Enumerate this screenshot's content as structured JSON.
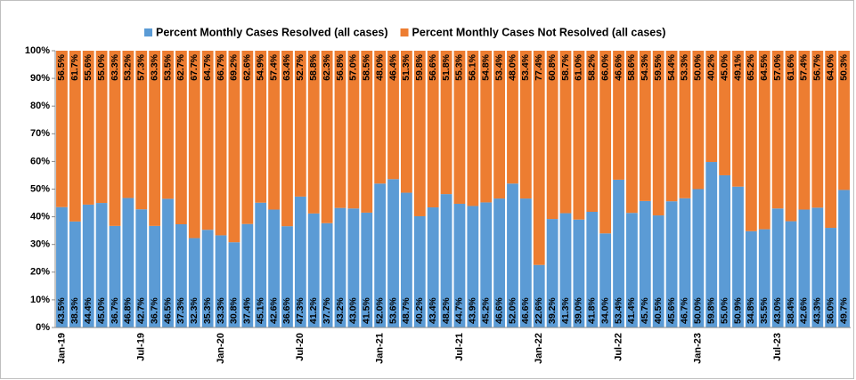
{
  "chart_data": {
    "type": "stacked_bar",
    "categories": [
      "Jan-19",
      null,
      null,
      null,
      null,
      null,
      "Jul-19",
      null,
      null,
      null,
      null,
      null,
      "Jan-20",
      null,
      null,
      null,
      null,
      null,
      "Jul-20",
      null,
      null,
      null,
      null,
      null,
      "Jan-21",
      null,
      null,
      null,
      null,
      null,
      "Jul-21",
      null,
      null,
      null,
      null,
      null,
      "Jan-22",
      null,
      null,
      null,
      null,
      null,
      "Jul-22",
      null,
      null,
      null,
      null,
      null,
      "Jan-23",
      null,
      null,
      null,
      null,
      null,
      "Jul-23",
      null,
      null,
      null,
      null,
      null
    ],
    "series": [
      {
        "name": "Percent Monthly Cases Resolved (all cases)",
        "color": "#5b9bd5",
        "values": [
          43.5,
          38.3,
          44.4,
          45.0,
          36.7,
          46.8,
          42.7,
          36.7,
          46.5,
          37.3,
          32.3,
          35.3,
          33.3,
          30.8,
          37.4,
          45.1,
          42.6,
          36.6,
          47.3,
          41.2,
          37.7,
          43.2,
          43.0,
          41.5,
          52.0,
          53.6,
          48.7,
          40.2,
          43.4,
          48.2,
          44.7,
          43.9,
          45.2,
          46.6,
          52.0,
          46.6,
          22.6,
          39.2,
          41.3,
          39.0,
          41.8,
          34.0,
          53.4,
          41.4,
          45.7,
          40.5,
          45.6,
          46.7,
          50.0,
          59.8,
          55.0,
          50.9,
          34.8,
          35.5,
          43.0,
          38.4,
          42.6,
          43.3,
          36.0,
          49.7
        ],
        "value_labels": [
          "43.5%",
          "38.3%",
          "44.4%",
          "45.0%",
          "36.7%",
          "46.8%",
          "42.7%",
          "36.7%",
          "46.5%",
          "37.3%",
          "32.3%",
          "35.3%",
          "33.3%",
          "30.8%",
          "37.4%",
          "45.1%",
          "42.6%",
          "36.6%",
          "47.3%",
          "41.2%",
          "37.7%",
          "43.2%",
          "43.0%",
          "41.5%",
          "52.0%",
          "53.6%",
          "48.7%",
          "40.2%",
          "43.4%",
          "48.2%",
          "44.7%",
          "43.9%",
          "45.2%",
          "46.6%",
          "52.0%",
          "46.6%",
          "22.6%",
          "39.2%",
          "41.3%",
          "39.0%",
          "41.8%",
          "34.0%",
          "53.4%",
          "41.4%",
          "45.7%",
          "40.5%",
          "45.6%",
          "46.7%",
          "50.0%",
          "59.8%",
          "55.0%",
          "50.9%",
          "34.8%",
          "35.5%",
          "43.0%",
          "38.4%",
          "42.6%",
          "43.3%",
          "36.0%",
          "49.7%"
        ]
      },
      {
        "name": "Percent Monthly Cases Not Resolved (all cases)",
        "color": "#ed7d31",
        "values": [
          56.5,
          61.7,
          55.6,
          55.0,
          63.3,
          53.2,
          57.3,
          63.3,
          53.5,
          62.7,
          67.7,
          64.7,
          66.7,
          69.2,
          62.6,
          54.9,
          57.4,
          63.4,
          52.7,
          58.8,
          62.3,
          56.8,
          57.0,
          58.5,
          48.0,
          46.4,
          51.3,
          59.8,
          56.6,
          51.8,
          55.3,
          56.1,
          54.8,
          53.4,
          48.0,
          53.4,
          77.4,
          60.8,
          58.7,
          61.0,
          58.2,
          66.0,
          46.6,
          58.6,
          54.3,
          59.5,
          54.4,
          53.3,
          50.0,
          40.2,
          45.0,
          49.1,
          65.2,
          64.5,
          57.0,
          61.6,
          57.4,
          56.7,
          64.0,
          50.3
        ],
        "value_labels": [
          "56.5%",
          "61.7%",
          "55.6%",
          "55.0%",
          "63.3%",
          "53.2%",
          "57.3%",
          "63.3%",
          "53.5%",
          "62.7%",
          "67.7%",
          "64.7%",
          "66.7%",
          "69.2%",
          "62.6%",
          "54.9%",
          "57.4%",
          "63.4%",
          "52.7%",
          "58.8%",
          "62.3%",
          "56.8%",
          "57.0%",
          "58.5%",
          "48.0%",
          "46.4%",
          "51.3%",
          "59.8%",
          "56.6%",
          "51.8%",
          "55.3%",
          "56.1%",
          "54.8%",
          "53.4%",
          "48.0%",
          "53.4%",
          "77.4%",
          "60.8%",
          "58.7%",
          "61.0%",
          "58.2%",
          "66.0%",
          "46.6%",
          "58.6%",
          "54.3%",
          "59.5%",
          "54.4%",
          "53.3%",
          "50.0%",
          "40.2%",
          "45.0%",
          "49.1%",
          "65.2%",
          "64.5%",
          "57.0%",
          "61.6%",
          "57.4%",
          "56.7%",
          "64.0%",
          "50.3%"
        ]
      }
    ],
    "ylim": [
      0,
      100
    ],
    "yticks": [
      {
        "value": 0,
        "label": "0%"
      },
      {
        "value": 10,
        "label": "10%"
      },
      {
        "value": 20,
        "label": "20%"
      },
      {
        "value": 30,
        "label": "30%"
      },
      {
        "value": 40,
        "label": "40%"
      },
      {
        "value": 50,
        "label": "50%"
      },
      {
        "value": 60,
        "label": "60%"
      },
      {
        "value": 70,
        "label": "70%"
      },
      {
        "value": 80,
        "label": "80%"
      },
      {
        "value": 90,
        "label": "90%"
      },
      {
        "value": 100,
        "label": "100%"
      }
    ],
    "legend": "top"
  }
}
